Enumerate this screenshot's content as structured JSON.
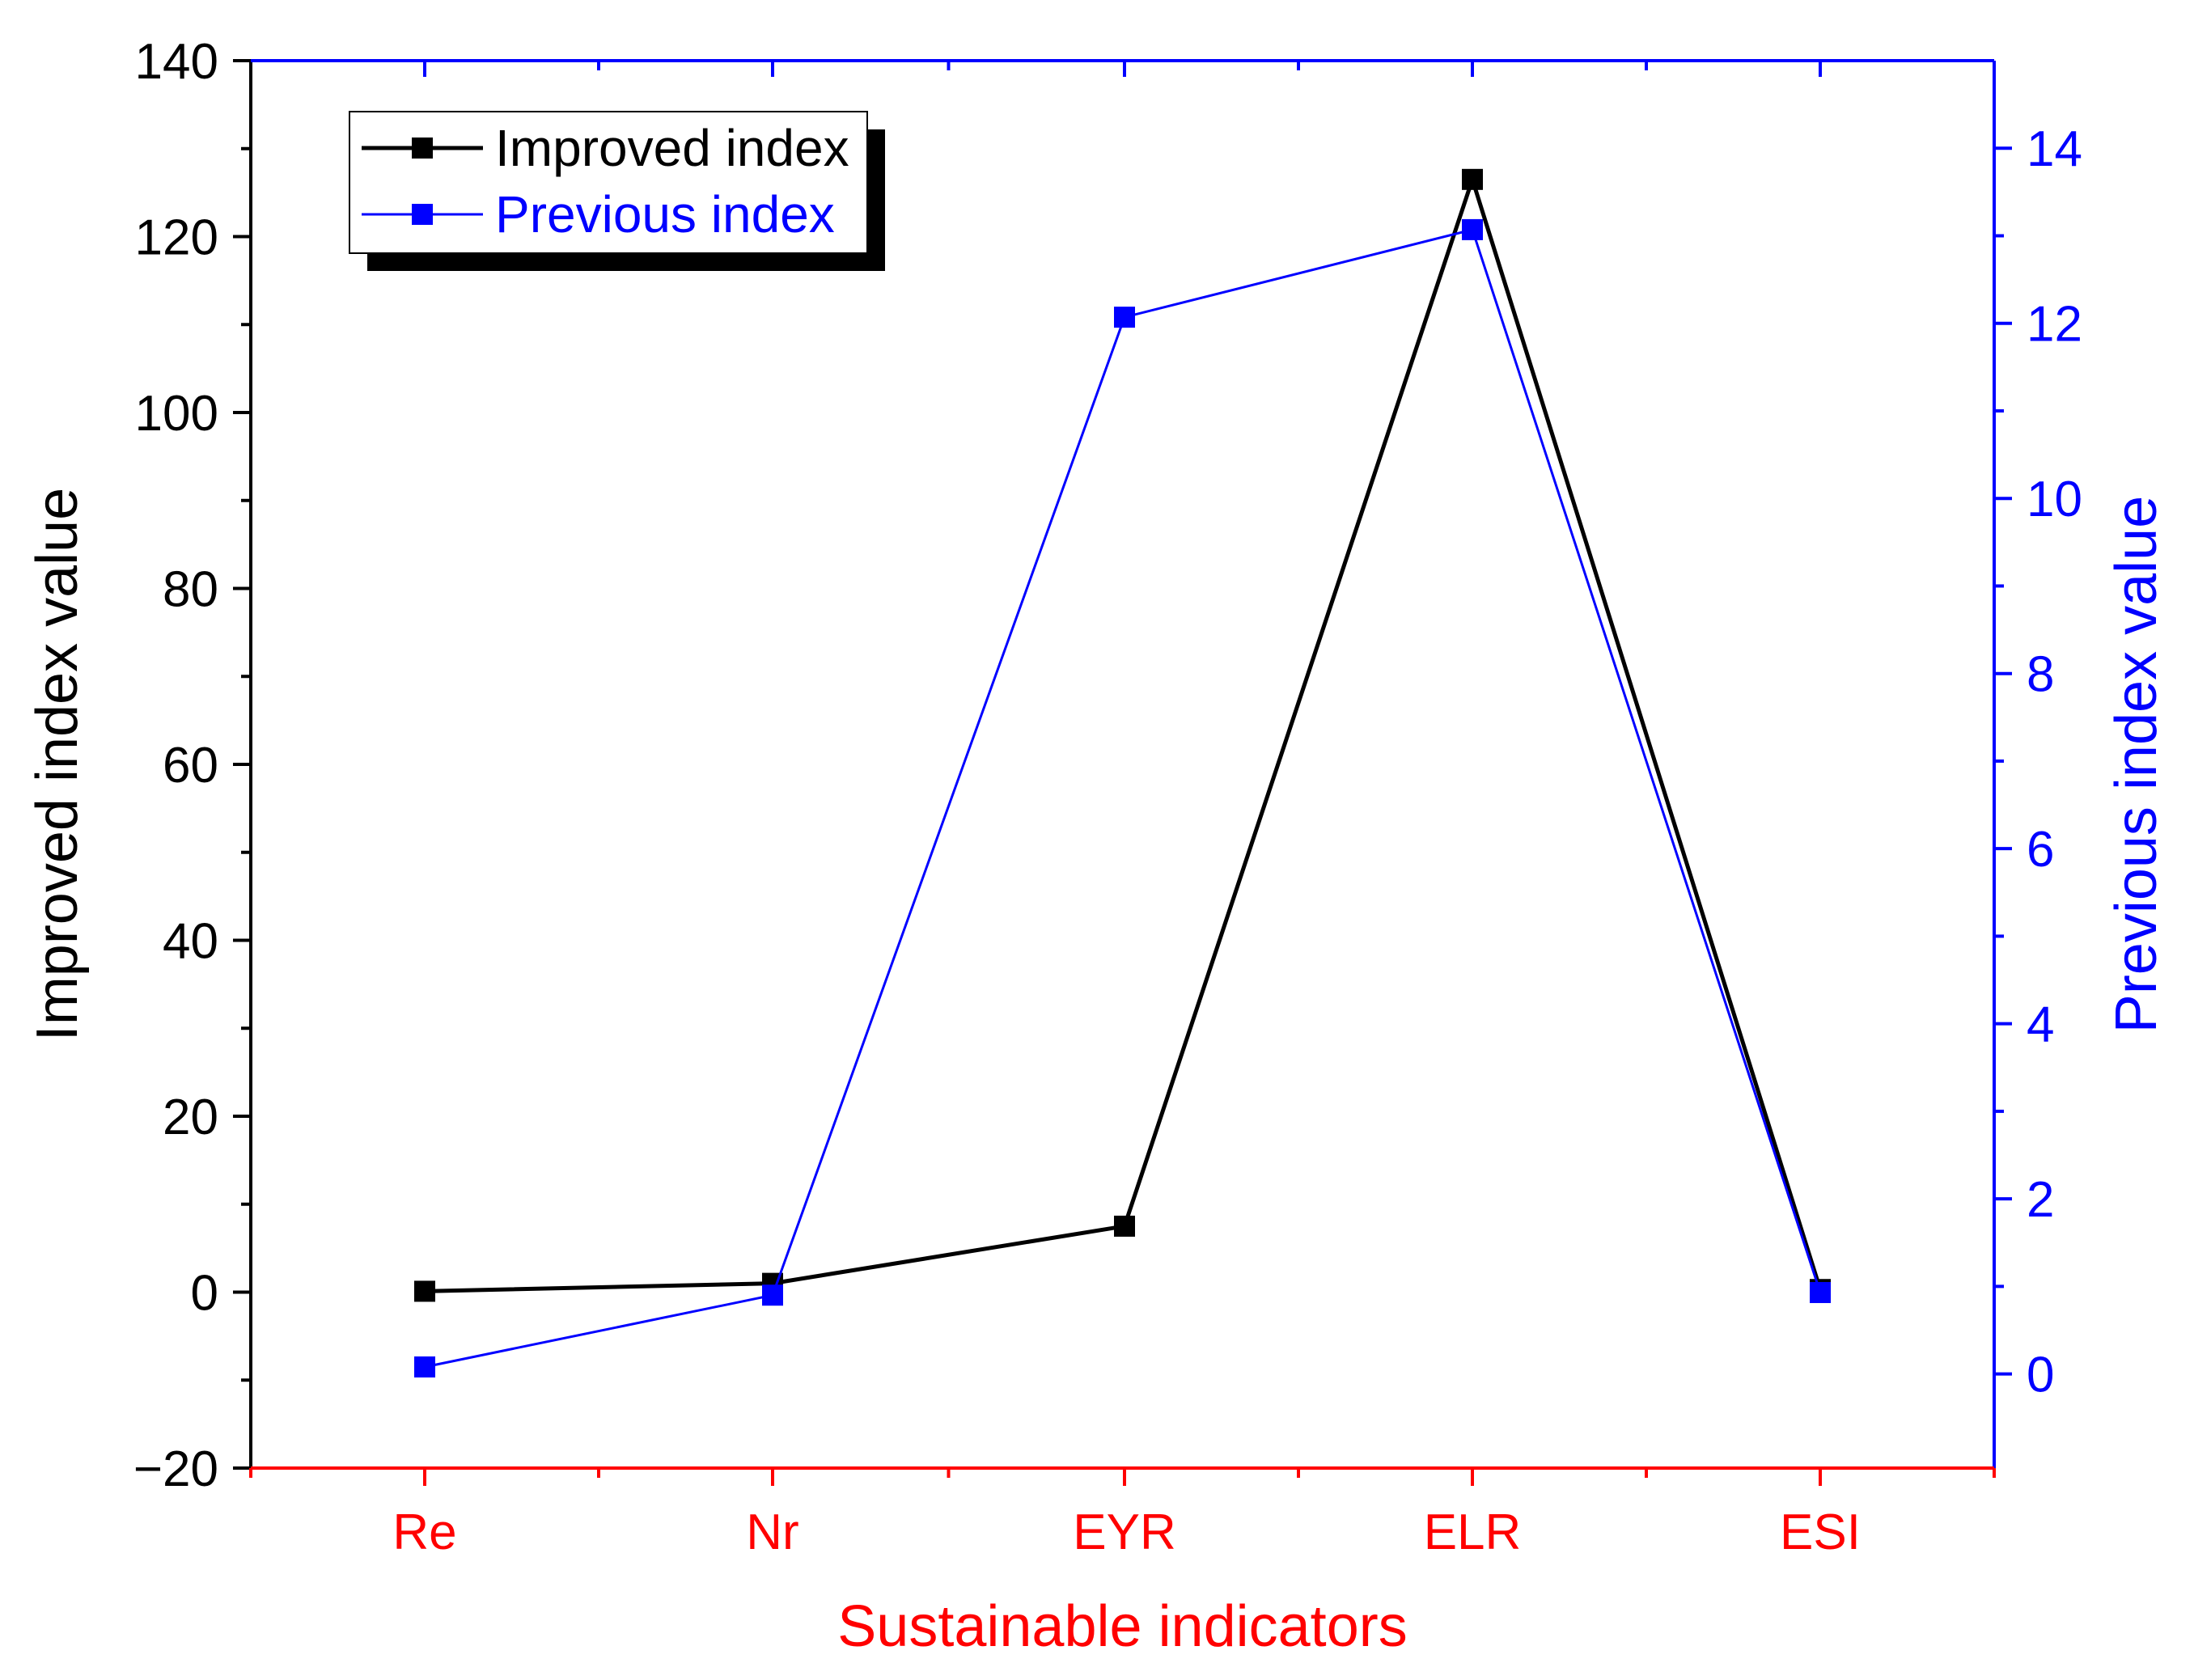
{
  "chart_data": {
    "type": "line",
    "categories": [
      "Re",
      "Nr",
      "EYR",
      "ELR",
      "ESI"
    ],
    "xlabel": "Sustainable indicators",
    "y_left": {
      "label": "Improved index value",
      "range": [
        -20,
        140
      ],
      "ticks": [
        -20,
        0,
        20,
        40,
        60,
        80,
        100,
        120,
        140
      ],
      "tick_labels": [
        "−20",
        "0",
        "20",
        "40",
        "60",
        "80",
        "100",
        "120",
        "140"
      ]
    },
    "y_right": {
      "label": "Previous index value",
      "range": [
        -1.075,
        15
      ],
      "ticks": [
        0,
        2,
        4,
        6,
        8,
        10,
        12,
        14
      ],
      "tick_labels": [
        "0",
        "2",
        "4",
        "6",
        "8",
        "10",
        "12",
        "14"
      ]
    },
    "series": [
      {
        "name": "Improved index",
        "axis": "left",
        "values": [
          0.1,
          1.0,
          7.5,
          126.5,
          0.3
        ]
      },
      {
        "name": "Previous index",
        "axis": "right",
        "values": [
          0.08,
          0.9,
          12.07,
          13.07,
          0.93
        ]
      }
    ],
    "legend_position": "top-left",
    "grid": false
  },
  "colors": {
    "improved": "#000000",
    "previous": "#0000ff",
    "x_axis": "#ff0000",
    "right_axis": "#0000ff",
    "left_axis": "#000000"
  }
}
